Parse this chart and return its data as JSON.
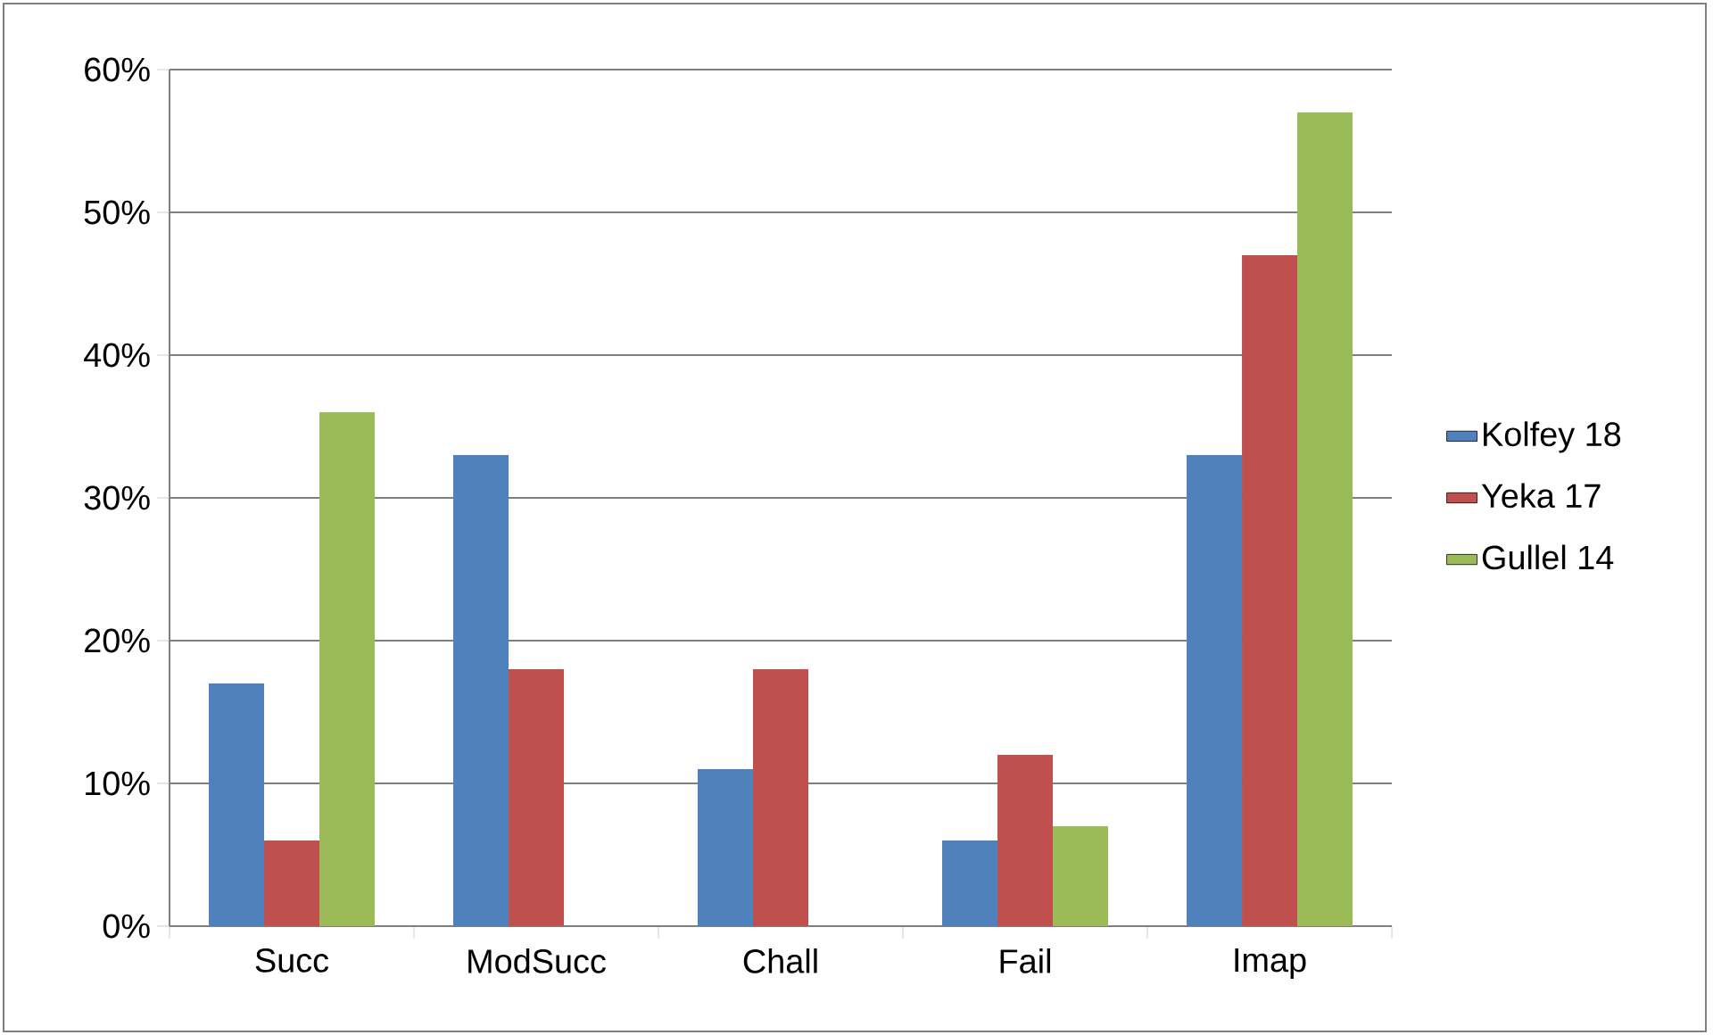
{
  "chart_data": {
    "type": "bar",
    "categories": [
      "Succ",
      "ModSucc",
      "Chall",
      "Fail",
      "Imap"
    ],
    "series": [
      {
        "name": "Kolfey 18",
        "color": "#4f81bd",
        "values": [
          17,
          33,
          11,
          6,
          33
        ]
      },
      {
        "name": "Yeka 17",
        "color": "#c0504d",
        "values": [
          6,
          18,
          18,
          12,
          47
        ]
      },
      {
        "name": "Gullel 14",
        "color": "#9bbb59",
        "values": [
          36,
          0,
          0,
          7,
          57
        ]
      }
    ],
    "ylim": [
      0,
      60
    ],
    "yticks": [
      {
        "value": 0,
        "label": "0%"
      },
      {
        "value": 10,
        "label": "10%"
      },
      {
        "value": 20,
        "label": "20%"
      },
      {
        "value": 30,
        "label": "30%"
      },
      {
        "value": 40,
        "label": "40%"
      },
      {
        "value": 50,
        "label": "50%"
      },
      {
        "value": 60,
        "label": "60%"
      }
    ],
    "grid": "y",
    "legend": "right"
  }
}
